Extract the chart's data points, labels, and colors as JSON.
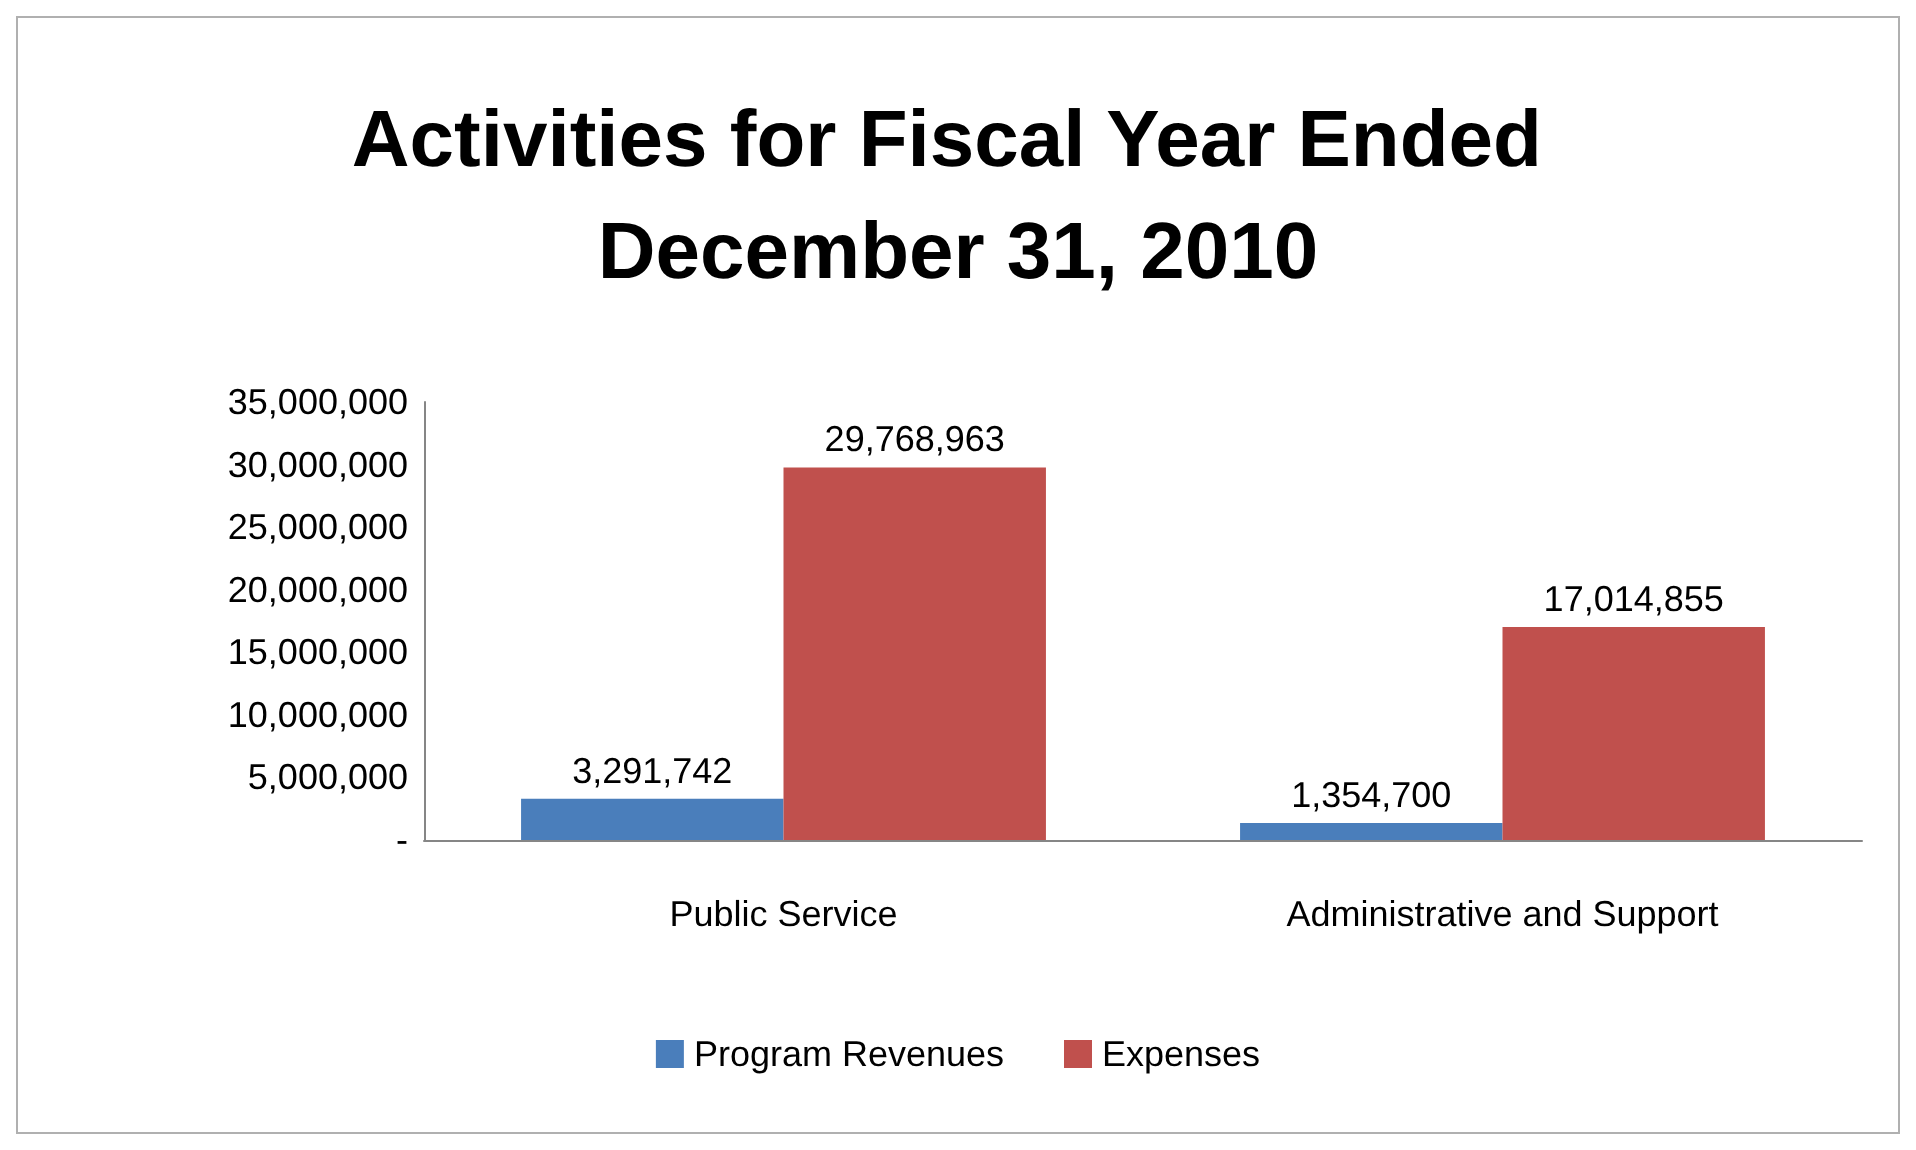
{
  "chart_data": {
    "type": "bar",
    "title": "Activities for Fiscal Year Ended December 31, 2010",
    "categories": [
      "Public Service",
      "Administrative and Support"
    ],
    "series": [
      {
        "name": "Program Revenues",
        "color": "#4a7ebb",
        "values": [
          3291742,
          1354700
        ],
        "value_labels": [
          "3,291,742",
          "1,354,700"
        ]
      },
      {
        "name": "Expenses",
        "color": "#c0504d",
        "values": [
          29768963,
          17014855
        ],
        "value_labels": [
          "29,768,963",
          "17,014,855"
        ]
      }
    ],
    "ylim": [
      0,
      35000000
    ],
    "yticks": [
      {
        "value": 0,
        "label": "-"
      },
      {
        "value": 5000000,
        "label": "5,000,000"
      },
      {
        "value": 10000000,
        "label": "10,000,000"
      },
      {
        "value": 15000000,
        "label": "15,000,000"
      },
      {
        "value": 20000000,
        "label": "20,000,000"
      },
      {
        "value": 25000000,
        "label": "25,000,000"
      },
      {
        "value": 30000000,
        "label": "30,000,000"
      },
      {
        "value": 35000000,
        "label": "35,000,000"
      }
    ],
    "grid": false,
    "legend": "bottom"
  }
}
